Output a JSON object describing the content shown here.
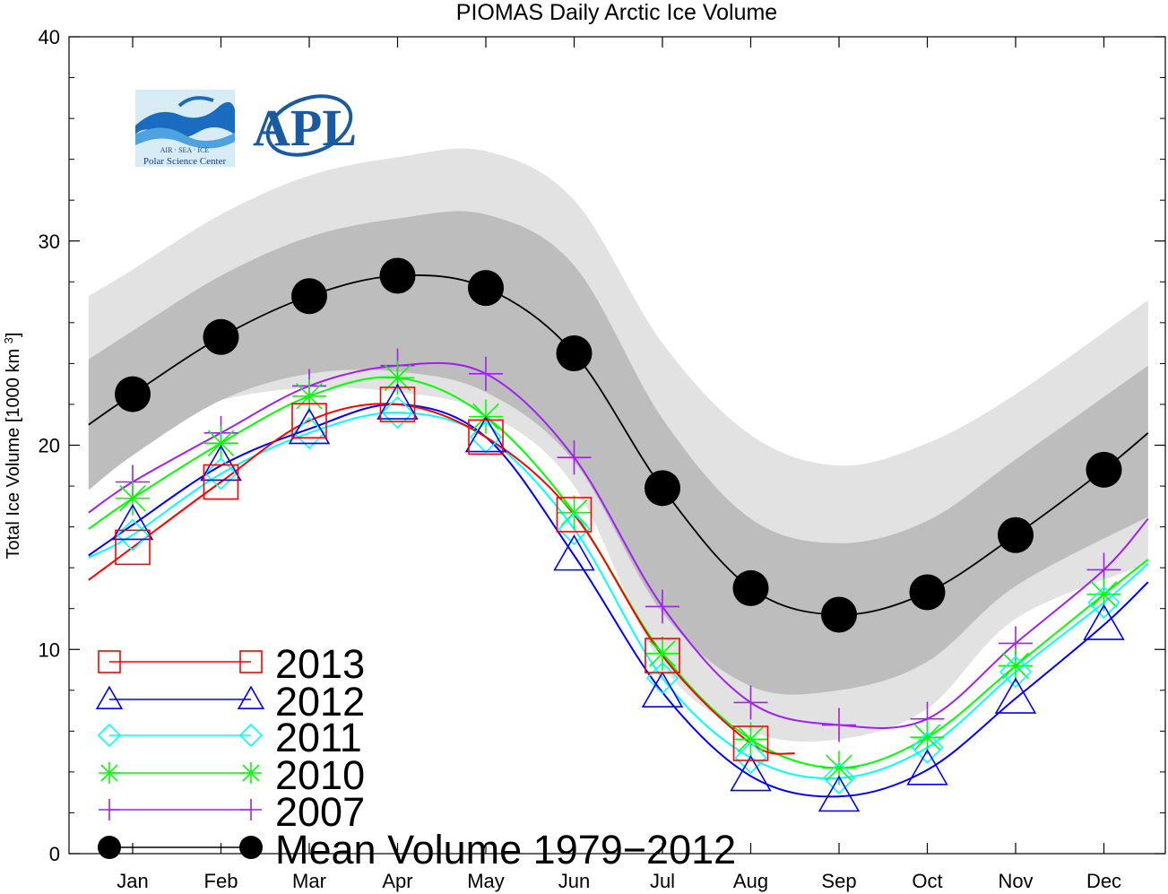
{
  "chart_data": {
    "type": "line",
    "title": "PIOMAS Daily Arctic Ice Volume",
    "ylabel": "Total Ice Volume [1000 km³]",
    "xlabel": "",
    "ylim": [
      0,
      40
    ],
    "yticks": [
      0,
      10,
      20,
      30,
      40
    ],
    "months": [
      "Jan",
      "Feb",
      "Mar",
      "Apr",
      "May",
      "Jun",
      "Jul",
      "Aug",
      "Sep",
      "Oct",
      "Nov",
      "Dec"
    ],
    "grid": false,
    "legend_position": "bottom-left",
    "bands": {
      "outer": {
        "color": "#e2e2e2",
        "x": [
          0.5,
          1,
          2,
          3,
          4,
          5,
          6,
          7,
          8,
          9,
          10,
          11,
          12.5
        ],
        "upper": [
          27.3,
          28.6,
          31.3,
          33.2,
          34.1,
          34.4,
          32.0,
          25.0,
          20.5,
          19.0,
          20.1,
          22.5,
          27.1
        ],
        "lower": [
          17.9,
          20.5,
          22.2,
          22.8,
          22.6,
          21.6,
          18.0,
          9.2,
          6.0,
          5.6,
          7.1,
          11.5,
          14.2
        ]
      },
      "inner": {
        "color": "#bdbdbd",
        "x": [
          0.5,
          1,
          2,
          3,
          4,
          5,
          6,
          7,
          8,
          9,
          10,
          11,
          12.5
        ],
        "upper": [
          24.2,
          25.6,
          28.3,
          30.2,
          31.1,
          31.3,
          28.8,
          21.3,
          16.4,
          15.2,
          16.3,
          19.3,
          23.9
        ],
        "lower": [
          17.8,
          19.5,
          22.2,
          23.5,
          23.6,
          22.6,
          19.2,
          11.8,
          8.2,
          8.0,
          9.4,
          13.1,
          16.5
        ]
      }
    },
    "series": [
      {
        "name": "Mean Volume 1979-2012",
        "color": "#000000",
        "marker": "circle",
        "x": [
          0.5,
          1,
          2,
          3,
          4,
          5,
          6,
          7,
          8,
          9,
          10,
          11,
          12,
          12.5
        ],
        "values": [
          21.0,
          22.5,
          25.3,
          27.3,
          28.3,
          27.7,
          24.5,
          17.9,
          13.0,
          11.7,
          12.8,
          15.6,
          18.8,
          20.6
        ]
      },
      {
        "name": "2007",
        "color": "#a020f0",
        "marker": "plus",
        "x": [
          0.5,
          1,
          2,
          3,
          4,
          5,
          6,
          7,
          8,
          9,
          10,
          11,
          12,
          12.5
        ],
        "values": [
          16.7,
          18.2,
          20.6,
          22.9,
          23.9,
          23.5,
          19.4,
          12.1,
          7.4,
          6.3,
          6.6,
          10.3,
          13.9,
          16.4
        ]
      },
      {
        "name": "2010",
        "color": "#00ff00",
        "marker": "asterisk",
        "x": [
          0.5,
          1,
          2,
          3,
          4,
          5,
          6,
          7,
          8,
          9,
          10,
          11,
          12,
          12.5
        ],
        "values": [
          15.9,
          17.4,
          20.1,
          22.4,
          23.3,
          21.4,
          16.7,
          9.8,
          5.6,
          4.2,
          5.7,
          9.2,
          12.7,
          14.4
        ]
      },
      {
        "name": "2011",
        "color": "#00ffff",
        "marker": "diamond",
        "x": [
          0.5,
          1,
          2,
          3,
          4,
          5,
          6,
          7,
          8,
          9,
          10,
          11,
          12,
          12.5
        ],
        "values": [
          14.5,
          15.6,
          18.6,
          20.6,
          21.6,
          20.4,
          15.9,
          8.6,
          4.7,
          3.7,
          5.2,
          8.9,
          12.3,
          14.2
        ]
      },
      {
        "name": "2012",
        "color": "#0000ff",
        "marker": "triangle",
        "x": [
          0.5,
          1,
          2,
          3,
          4,
          5,
          6,
          7,
          8,
          9,
          10,
          11,
          12,
          12.5
        ],
        "values": [
          14.6,
          16.1,
          19.0,
          20.8,
          22.0,
          20.4,
          14.6,
          7.9,
          3.8,
          2.8,
          4.1,
          7.6,
          11.2,
          13.3
        ]
      },
      {
        "name": "2013",
        "color": "#ff0000",
        "marker": "square",
        "x": [
          0.5,
          1,
          2,
          3,
          4,
          5,
          6,
          7,
          8,
          8.5
        ],
        "values": [
          13.4,
          15.0,
          18.2,
          21.2,
          22.0,
          20.4,
          16.6,
          9.7,
          5.4,
          4.9
        ]
      }
    ],
    "legend": [
      {
        "label": "2013",
        "color": "#ff0000",
        "marker": "square"
      },
      {
        "label": "2012",
        "color": "#0000ff",
        "marker": "triangle"
      },
      {
        "label": "2011",
        "color": "#00ffff",
        "marker": "diamond"
      },
      {
        "label": "2010",
        "color": "#00ff00",
        "marker": "asterisk"
      },
      {
        "label": "2007",
        "color": "#a020f0",
        "marker": "plus"
      },
      {
        "label": "Mean Volume 1979−2012",
        "color": "#000000",
        "marker": "circle"
      }
    ]
  },
  "logos": {
    "psc": {
      "line1": "AIR · SEA · ICE",
      "line2": "Polar Science Center"
    },
    "apl": {
      "text": "APL"
    }
  }
}
